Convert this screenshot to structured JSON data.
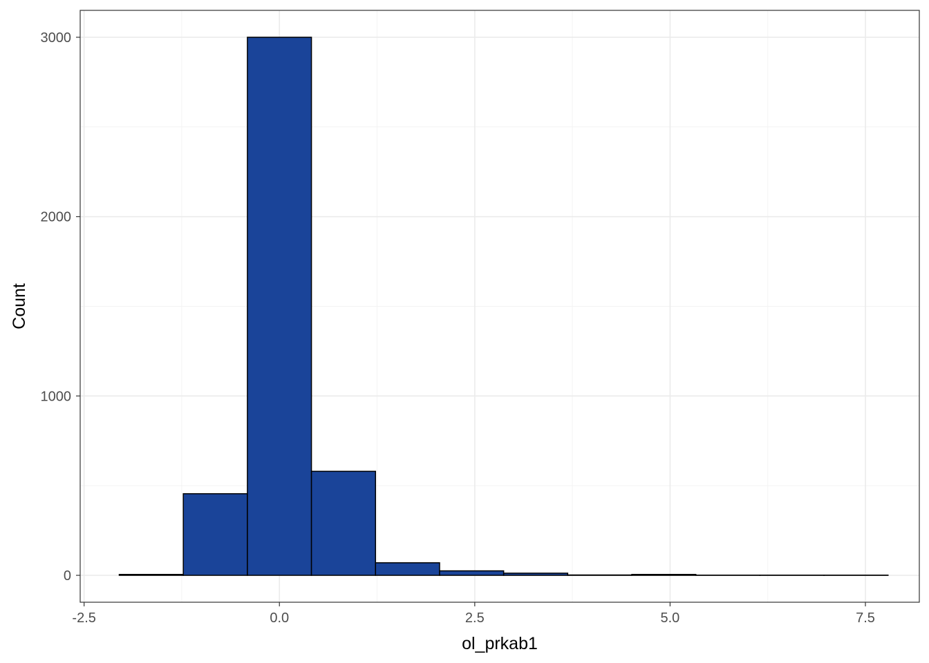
{
  "chart_data": {
    "type": "bar",
    "subtype": "histogram",
    "title": "",
    "xlabel": "ol_prkab1",
    "ylabel": "Count",
    "xlim": [
      -2.55,
      8.19
    ],
    "ylim": [
      -150,
      3150
    ],
    "x_ticks": [
      -2.5,
      0.0,
      2.5,
      5.0,
      7.5
    ],
    "x_tick_labels": [
      "-2.5",
      "0.0",
      "2.5",
      "5.0",
      "7.5"
    ],
    "y_ticks": [
      0,
      1000,
      2000,
      3000
    ],
    "y_tick_labels": [
      "0",
      "1000",
      "2000",
      "3000"
    ],
    "grid": true,
    "legend": "none",
    "bin_width": 0.82,
    "bins": [
      {
        "x0": -2.05,
        "x1": -1.23,
        "count": 5
      },
      {
        "x0": -1.23,
        "x1": -0.41,
        "count": 455
      },
      {
        "x0": -0.41,
        "x1": 0.41,
        "count": 3000
      },
      {
        "x0": 0.41,
        "x1": 1.23,
        "count": 580
      },
      {
        "x0": 1.23,
        "x1": 2.05,
        "count": 70
      },
      {
        "x0": 2.05,
        "x1": 2.87,
        "count": 25
      },
      {
        "x0": 2.87,
        "x1": 3.69,
        "count": 12
      },
      {
        "x0": 3.69,
        "x1": 4.51,
        "count": 2
      },
      {
        "x0": 4.51,
        "x1": 5.33,
        "count": 5
      },
      {
        "x0": 5.33,
        "x1": 6.15,
        "count": 1
      },
      {
        "x0": 6.15,
        "x1": 6.97,
        "count": 1
      },
      {
        "x0": 6.97,
        "x1": 7.79,
        "count": 1
      }
    ],
    "colors": {
      "bar_fill": "#1A4499",
      "bar_outline": "#000000",
      "panel_background": "#FFFFFF",
      "grid": "#EBEBEB",
      "panel_border": "#333333"
    }
  }
}
